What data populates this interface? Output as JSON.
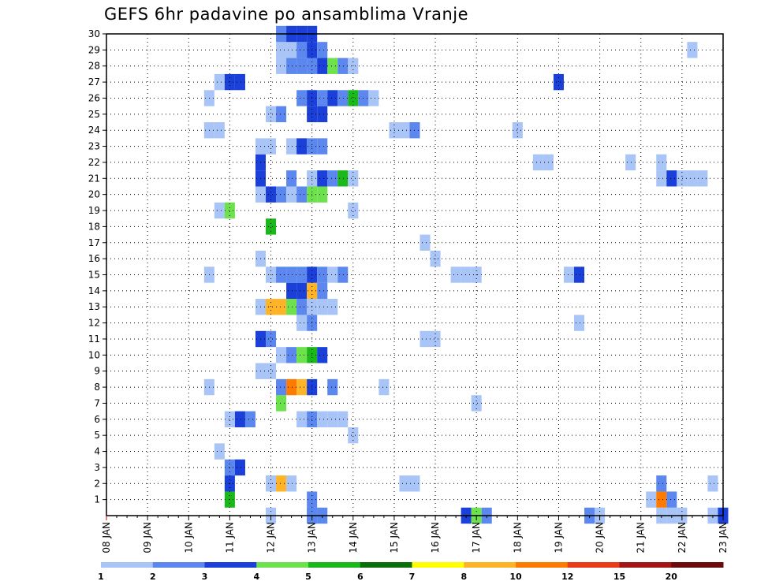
{
  "chart_data": {
    "type": "heatmap",
    "title": "GEFS 6hr padavine po ansamblima Vranje",
    "y_ticks": [
      "1",
      "2",
      "3",
      "4",
      "5",
      "6",
      "7",
      "8",
      "9",
      "10",
      "11",
      "12",
      "13",
      "14",
      "15",
      "16",
      "17",
      "18",
      "19",
      "20",
      "21",
      "22",
      "23",
      "24",
      "25",
      "26",
      "27",
      "28",
      "29",
      "30"
    ],
    "x_ticks": [
      "08 JAN",
      "09 JAN",
      "10 JAN",
      "11 JAN",
      "12 JAN",
      "13 JAN",
      "14 JAN",
      "15 JAN",
      "16 JAN",
      "17 JAN",
      "18 JAN",
      "19 JAN",
      "20 JAN",
      "21 JAN",
      "22 JAN",
      "23 JAN"
    ],
    "xlim": [
      "08 JAN",
      "23 JAN"
    ],
    "ylim": [
      0,
      30
    ],
    "grid": true,
    "cells": [
      [
        "12 JAN 00Z",
        0,
        1
      ],
      [
        "13 JAN 00Z",
        0,
        3
      ],
      [
        "13 JAN 00Z",
        0,
        3
      ],
      [
        "13 JAN 06Z",
        0,
        3
      ],
      [
        "16 JAN 18Z",
        0,
        4
      ],
      [
        "17 JAN 00Z",
        0,
        5
      ],
      [
        "17 JAN 06Z",
        0,
        3
      ],
      [
        "19 JAN 18Z",
        0,
        3
      ],
      [
        "20 JAN 00Z",
        0,
        1
      ],
      [
        "21 JAN 12Z",
        0,
        1
      ],
      [
        "21 JAN 18Z",
        0,
        1
      ],
      [
        "22 JAN 00Z",
        0,
        1
      ],
      [
        "22 JAN 18Z",
        0,
        1
      ],
      [
        "23 JAN 00Z",
        0,
        4
      ],
      [
        "11 JAN 00Z",
        1,
        6
      ],
      [
        "13 JAN 00Z",
        1,
        3
      ],
      [
        "21 JAN 06Z",
        1,
        1
      ],
      [
        "21 JAN 12Z",
        1,
        10
      ],
      [
        "21 JAN 18Z",
        1,
        3
      ],
      [
        "11 JAN 00Z",
        2,
        4
      ],
      [
        "12 JAN 00Z",
        2,
        1
      ],
      [
        "12 JAN 06Z",
        2,
        8
      ],
      [
        "12 JAN 12Z",
        2,
        1
      ],
      [
        "15 JAN 06Z",
        2,
        1
      ],
      [
        "15 JAN 12Z",
        2,
        1
      ],
      [
        "21 JAN 12Z",
        2,
        3
      ],
      [
        "22 JAN 18Z",
        2,
        1
      ],
      [
        "11 JAN 00Z",
        3,
        3
      ],
      [
        "11 JAN 06Z",
        3,
        4
      ],
      [
        "10 JAN 18Z",
        4,
        1
      ],
      [
        "14 JAN 00Z",
        5,
        1
      ],
      [
        "11 JAN 00Z",
        6,
        1
      ],
      [
        "11 JAN 06Z",
        6,
        4
      ],
      [
        "11 JAN 12Z",
        6,
        3
      ],
      [
        "12 JAN 18Z",
        6,
        1
      ],
      [
        "13 JAN 00Z",
        6,
        3
      ],
      [
        "13 JAN 06Z",
        6,
        1
      ],
      [
        "13 JAN 12Z",
        6,
        1
      ],
      [
        "13 JAN 18Z",
        6,
        1
      ],
      [
        "12 JAN 06Z",
        7,
        5
      ],
      [
        "17 JAN 00Z",
        7,
        1
      ],
      [
        "10 JAN 12Z",
        8,
        1
      ],
      [
        "12 JAN 06Z",
        8,
        3
      ],
      [
        "12 JAN 12Z",
        8,
        10
      ],
      [
        "12 JAN 18Z",
        8,
        8
      ],
      [
        "13 JAN 00Z",
        8,
        4
      ],
      [
        "13 JAN 12Z",
        8,
        3
      ],
      [
        "14 JAN 18Z",
        8,
        1
      ],
      [
        "11 JAN 18Z",
        9,
        1
      ],
      [
        "12 JAN 00Z",
        9,
        1
      ],
      [
        "12 JAN 06Z",
        10,
        1
      ],
      [
        "12 JAN 12Z",
        10,
        3
      ],
      [
        "12 JAN 18Z",
        10,
        5
      ],
      [
        "13 JAN 00Z",
        10,
        6
      ],
      [
        "13 JAN 06Z",
        10,
        4
      ],
      [
        "11 JAN 18Z",
        11,
        4
      ],
      [
        "12 JAN 00Z",
        11,
        3
      ],
      [
        "15 JAN 18Z",
        11,
        1
      ],
      [
        "16 JAN 00Z",
        11,
        1
      ],
      [
        "12 JAN 18Z",
        12,
        1
      ],
      [
        "13 JAN 00Z",
        12,
        3
      ],
      [
        "19 JAN 12Z",
        12,
        1
      ],
      [
        "11 JAN 18Z",
        13,
        1
      ],
      [
        "12 JAN 00Z",
        13,
        8
      ],
      [
        "12 JAN 06Z",
        13,
        8
      ],
      [
        "12 JAN 12Z",
        13,
        5
      ],
      [
        "12 JAN 18Z",
        13,
        3
      ],
      [
        "13 JAN 00Z",
        13,
        1
      ],
      [
        "13 JAN 06Z",
        13,
        1
      ],
      [
        "13 JAN 12Z",
        13,
        1
      ],
      [
        "12 JAN 12Z",
        14,
        4
      ],
      [
        "12 JAN 18Z",
        14,
        4
      ],
      [
        "13 JAN 00Z",
        14,
        8
      ],
      [
        "13 JAN 06Z",
        14,
        3
      ],
      [
        "10 JAN 12Z",
        15,
        1
      ],
      [
        "12 JAN 00Z",
        15,
        1
      ],
      [
        "12 JAN 06Z",
        15,
        3
      ],
      [
        "12 JAN 12Z",
        15,
        3
      ],
      [
        "12 JAN 18Z",
        15,
        3
      ],
      [
        "13 JAN 00Z",
        15,
        4
      ],
      [
        "13 JAN 06Z",
        15,
        3
      ],
      [
        "13 JAN 12Z",
        15,
        1
      ],
      [
        "13 JAN 18Z",
        15,
        3
      ],
      [
        "16 JAN 12Z",
        15,
        1
      ],
      [
        "16 JAN 18Z",
        15,
        1
      ],
      [
        "17 JAN 00Z",
        15,
        1
      ],
      [
        "19 JAN 06Z",
        15,
        1
      ],
      [
        "19 JAN 12Z",
        15,
        4
      ],
      [
        "11 JAN 18Z",
        16,
        1
      ],
      [
        "16 JAN 00Z",
        16,
        1
      ],
      [
        "15 JAN 18Z",
        17,
        1
      ],
      [
        "12 JAN 00Z",
        18,
        6
      ],
      [
        "10 JAN 18Z",
        19,
        1
      ],
      [
        "11 JAN 00Z",
        19,
        5
      ],
      [
        "14 JAN 00Z",
        19,
        1
      ],
      [
        "11 JAN 18Z",
        20,
        1
      ],
      [
        "12 JAN 00Z",
        20,
        4
      ],
      [
        "12 JAN 06Z",
        20,
        3
      ],
      [
        "12 JAN 12Z",
        20,
        1
      ],
      [
        "12 JAN 18Z",
        20,
        3
      ],
      [
        "13 JAN 00Z",
        20,
        5
      ],
      [
        "13 JAN 06Z",
        20,
        5
      ],
      [
        "11 JAN 18Z",
        21,
        4
      ],
      [
        "12 JAN 12Z",
        21,
        3
      ],
      [
        "13 JAN 00Z",
        21,
        1
      ],
      [
        "13 JAN 06Z",
        21,
        4
      ],
      [
        "13 JAN 12Z",
        21,
        3
      ],
      [
        "13 JAN 18Z",
        21,
        6
      ],
      [
        "14 JAN 00Z",
        21,
        1
      ],
      [
        "21 JAN 12Z",
        21,
        1
      ],
      [
        "21 JAN 18Z",
        21,
        4
      ],
      [
        "22 JAN 00Z",
        21,
        1
      ],
      [
        "22 JAN 06Z",
        21,
        1
      ],
      [
        "22 JAN 12Z",
        21,
        1
      ],
      [
        "11 JAN 18Z",
        22,
        4
      ],
      [
        "18 JAN 12Z",
        22,
        1
      ],
      [
        "18 JAN 18Z",
        22,
        1
      ],
      [
        "20 JAN 18Z",
        22,
        1
      ],
      [
        "21 JAN 12Z",
        22,
        1
      ],
      [
        "11 JAN 18Z",
        23,
        1
      ],
      [
        "12 JAN 00Z",
        23,
        1
      ],
      [
        "12 JAN 12Z",
        23,
        1
      ],
      [
        "12 JAN 18Z",
        23,
        4
      ],
      [
        "13 JAN 00Z",
        23,
        3
      ],
      [
        "13 JAN 06Z",
        23,
        3
      ],
      [
        "10 JAN 12Z",
        24,
        1
      ],
      [
        "10 JAN 18Z",
        24,
        1
      ],
      [
        "15 JAN 00Z",
        24,
        1
      ],
      [
        "15 JAN 06Z",
        24,
        1
      ],
      [
        "15 JAN 12Z",
        24,
        3
      ],
      [
        "18 JAN 00Z",
        24,
        1
      ],
      [
        "12 JAN 00Z",
        25,
        1
      ],
      [
        "12 JAN 06Z",
        25,
        3
      ],
      [
        "13 JAN 00Z",
        25,
        4
      ],
      [
        "13 JAN 06Z",
        25,
        4
      ],
      [
        "10 JAN 12Z",
        26,
        1
      ],
      [
        "12 JAN 18Z",
        26,
        3
      ],
      [
        "13 JAN 00Z",
        26,
        4
      ],
      [
        "13 JAN 06Z",
        26,
        3
      ],
      [
        "13 JAN 12Z",
        26,
        4
      ],
      [
        "13 JAN 18Z",
        26,
        3
      ],
      [
        "14 JAN 00Z",
        26,
        6
      ],
      [
        "14 JAN 06Z",
        26,
        3
      ],
      [
        "14 JAN 12Z",
        26,
        1
      ],
      [
        "10 JAN 18Z",
        27,
        1
      ],
      [
        "11 JAN 00Z",
        27,
        4
      ],
      [
        "11 JAN 06Z",
        27,
        4
      ],
      [
        "19 JAN 00Z",
        27,
        4
      ],
      [
        "12 JAN 06Z",
        28,
        1
      ],
      [
        "12 JAN 12Z",
        28,
        3
      ],
      [
        "12 JAN 18Z",
        28,
        3
      ],
      [
        "13 JAN 00Z",
        28,
        3
      ],
      [
        "13 JAN 06Z",
        28,
        4
      ],
      [
        "13 JAN 12Z",
        28,
        5
      ],
      [
        "13 JAN 18Z",
        28,
        3
      ],
      [
        "14 JAN 00Z",
        28,
        1
      ],
      [
        "12 JAN 06Z",
        29,
        1
      ],
      [
        "12 JAN 12Z",
        29,
        1
      ],
      [
        "12 JAN 18Z",
        29,
        3
      ],
      [
        "13 JAN 00Z",
        29,
        4
      ],
      [
        "13 JAN 06Z",
        29,
        3
      ],
      [
        "22 JAN 06Z",
        29,
        1
      ],
      [
        "12 JAN 06Z",
        30,
        3
      ],
      [
        "12 JAN 12Z",
        30,
        4
      ],
      [
        "12 JAN 18Z",
        30,
        4
      ],
      [
        "13 JAN 00Z",
        30,
        4
      ]
    ],
    "legend": {
      "thresholds": [
        "1",
        "2",
        "3",
        "4",
        "5",
        "6",
        "7",
        "8",
        "10",
        "12",
        "15",
        "20"
      ],
      "colors": [
        "#a9c4f6",
        "#5b87ee",
        "#1a40d9",
        "#6ee24d",
        "#1bb81b",
        "#0a6e0a",
        "#ffff00",
        "#ffb428",
        "#ff7a00",
        "#e83c19",
        "#a31616",
        "#6b0b0b"
      ],
      "placement": "bottom"
    },
    "cell_colors": {
      "1": "#a9c4f6",
      "3": "#5b87ee",
      "4": "#1a40d9",
      "5": "#6ee24d",
      "6": "#1bb81b",
      "7": "#0a6e0a",
      "8": "#ffb428",
      "10": "#ff7a00"
    },
    "colors": {
      "grid": "#000000",
      "axis": "#000000"
    }
  }
}
